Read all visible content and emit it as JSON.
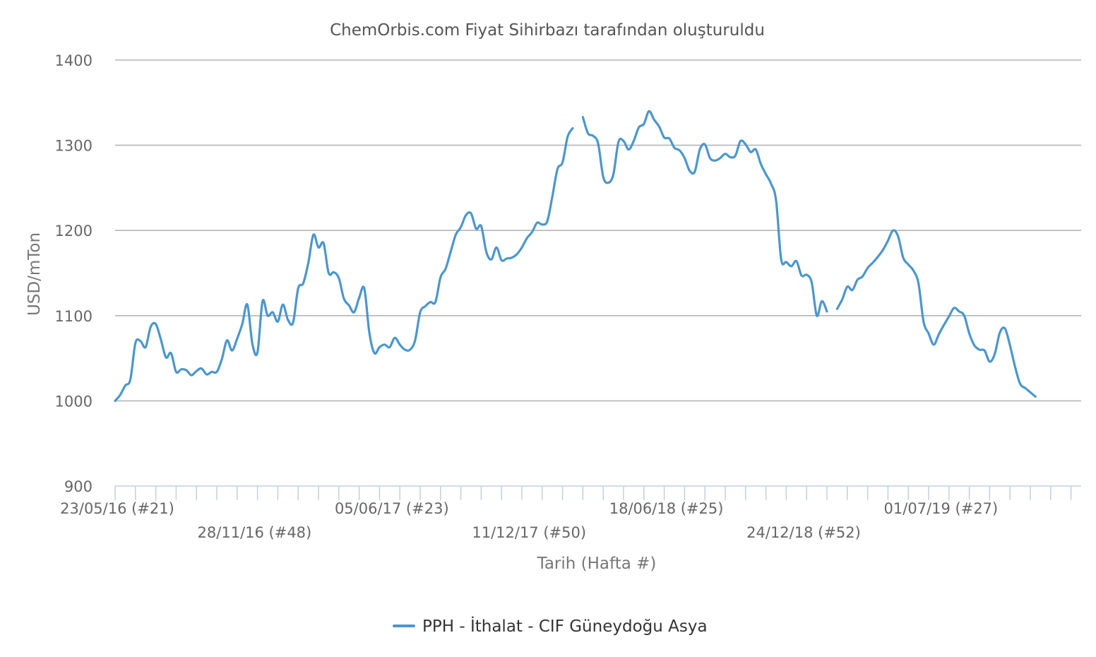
{
  "chart_data": {
    "type": "line",
    "title": "ChemOrbis.com Fiyat Sihirbazı tarafından oluşturuldu",
    "xlabel": "Tarih (Hafta #)",
    "ylabel": "USD/mTon",
    "ylim": [
      900,
      1400
    ],
    "yticks": [
      "900",
      "1000",
      "1100",
      "1200",
      "1300",
      "1400"
    ],
    "grid": true,
    "legend_position": "bottom",
    "color": "#4b96cc",
    "x_range": [
      "23/05/16",
      "13/01/20"
    ],
    "xtick_labels": [
      {
        "label": "23/05/16 (#21)",
        "row": 1
      },
      {
        "label": "28/11/16 (#48)",
        "row": 2
      },
      {
        "label": "05/06/17 (#23)",
        "row": 1
      },
      {
        "label": "11/12/17 (#50)",
        "row": 2
      },
      {
        "label": "18/06/18 (#25)",
        "row": 1
      },
      {
        "label": "24/12/18 (#52)",
        "row": 2
      },
      {
        "label": "01/07/19 (#27)",
        "row": 1
      }
    ],
    "series": [
      {
        "name": "PPH - İthalat - CIF Güneydoğu Asya",
        "points": [
          [
            "23/05/16",
            1000
          ],
          [
            "30/05/16",
            1007
          ],
          [
            "06/06/16",
            1018
          ],
          [
            "13/06/16",
            1025
          ],
          [
            "20/06/16",
            1068
          ],
          [
            "27/06/16",
            1070
          ],
          [
            "04/07/16",
            1063
          ],
          [
            "11/07/16",
            1087
          ],
          [
            "18/07/16",
            1090
          ],
          [
            "25/07/16",
            1072
          ],
          [
            "01/08/16",
            1051
          ],
          [
            "08/08/16",
            1056
          ],
          [
            "15/08/16",
            1034
          ],
          [
            "22/08/16",
            1037
          ],
          [
            "29/08/16",
            1036
          ],
          [
            "05/09/16",
            1030
          ],
          [
            "12/09/16",
            1035
          ],
          [
            "19/09/16",
            1038
          ],
          [
            "26/09/16",
            1031
          ],
          [
            "03/10/16",
            1034
          ],
          [
            "10/10/16",
            1034
          ],
          [
            "17/10/16",
            1049
          ],
          [
            "24/10/16",
            1071
          ],
          [
            "31/10/16",
            1059
          ],
          [
            "07/11/16",
            1073
          ],
          [
            "14/11/16",
            1090
          ],
          [
            "21/11/16",
            1113
          ],
          [
            "28/11/16",
            1067
          ],
          [
            "05/12/16",
            1057
          ],
          [
            "12/12/16",
            1117
          ],
          [
            "19/12/16",
            1100
          ],
          [
            "26/12/16",
            1104
          ],
          [
            "02/01/17",
            1093
          ],
          [
            "09/01/17",
            1113
          ],
          [
            "16/01/17",
            1095
          ],
          [
            "23/01/17",
            1092
          ],
          [
            "30/01/17",
            1132
          ],
          [
            "06/02/17",
            1138
          ],
          [
            "13/02/17",
            1162
          ],
          [
            "20/02/17",
            1195
          ],
          [
            "27/02/17",
            1180
          ],
          [
            "06/03/17",
            1185
          ],
          [
            "13/03/17",
            1150
          ],
          [
            "20/03/17",
            1151
          ],
          [
            "27/03/17",
            1144
          ],
          [
            "03/04/17",
            1120
          ],
          [
            "10/04/17",
            1112
          ],
          [
            "17/04/17",
            1104
          ],
          [
            "24/04/17",
            1121
          ],
          [
            "01/05/17",
            1132
          ],
          [
            "08/05/17",
            1080
          ],
          [
            "15/05/17",
            1056
          ],
          [
            "22/05/17",
            1063
          ],
          [
            "29/05/17",
            1066
          ],
          [
            "05/06/17",
            1063
          ],
          [
            "12/06/17",
            1074
          ],
          [
            "19/06/17",
            1066
          ],
          [
            "26/06/17",
            1060
          ],
          [
            "03/07/17",
            1060
          ],
          [
            "10/07/17",
            1071
          ],
          [
            "17/07/17",
            1104
          ],
          [
            "24/07/17",
            1111
          ],
          [
            "31/07/17",
            1116
          ],
          [
            "07/08/17",
            1116
          ],
          [
            "14/08/17",
            1145
          ],
          [
            "21/08/17",
            1155
          ],
          [
            "28/08/17",
            1175
          ],
          [
            "04/09/17",
            1195
          ],
          [
            "11/09/17",
            1204
          ],
          [
            "18/09/17",
            1218
          ],
          [
            "25/09/17",
            1220
          ],
          [
            "02/10/17",
            1202
          ],
          [
            "09/10/17",
            1205
          ],
          [
            "16/10/17",
            1175
          ],
          [
            "23/10/17",
            1166
          ],
          [
            "30/10/17",
            1180
          ],
          [
            "06/11/17",
            1165
          ],
          [
            "13/11/17",
            1167
          ],
          [
            "20/11/17",
            1168
          ],
          [
            "27/11/17",
            1172
          ],
          [
            "04/12/17",
            1180
          ],
          [
            "11/12/17",
            1191
          ],
          [
            "18/12/17",
            1198
          ],
          [
            "25/12/17",
            1209
          ],
          [
            "01/01/18",
            1207
          ],
          [
            "08/01/18",
            1211
          ],
          [
            "15/01/18",
            1240
          ],
          [
            "22/01/18",
            1272
          ],
          [
            "29/01/18",
            1280
          ],
          [
            "05/02/18",
            1310
          ],
          [
            "12/02/18",
            1320
          ],
          null,
          [
            "26/02/18",
            1333
          ],
          [
            "05/03/18",
            1314
          ],
          [
            "12/03/18",
            1311
          ],
          [
            "19/03/18",
            1302
          ],
          [
            "26/03/18",
            1263
          ],
          [
            "02/04/18",
            1256
          ],
          [
            "09/04/18",
            1266
          ],
          [
            "16/04/18",
            1304
          ],
          [
            "23/04/18",
            1305
          ],
          [
            "30/04/18",
            1295
          ],
          [
            "07/05/18",
            1305
          ],
          [
            "14/05/18",
            1321
          ],
          [
            "21/05/18",
            1325
          ],
          [
            "28/05/18",
            1340
          ],
          [
            "04/06/18",
            1330
          ],
          [
            "11/06/18",
            1322
          ],
          [
            "18/06/18",
            1309
          ],
          [
            "25/06/18",
            1308
          ],
          [
            "02/07/18",
            1297
          ],
          [
            "09/07/18",
            1294
          ],
          [
            "16/07/18",
            1285
          ],
          [
            "23/07/18",
            1270
          ],
          [
            "30/07/18",
            1269
          ],
          [
            "06/08/18",
            1295
          ],
          [
            "13/08/18",
            1301
          ],
          [
            "20/08/18",
            1285
          ],
          [
            "27/08/18",
            1282
          ],
          [
            "03/09/18",
            1285
          ],
          [
            "10/09/18",
            1290
          ],
          [
            "17/09/18",
            1286
          ],
          [
            "24/09/18",
            1288
          ],
          [
            "01/10/18",
            1305
          ],
          [
            "08/10/18",
            1301
          ],
          [
            "15/10/18",
            1292
          ],
          [
            "22/10/18",
            1295
          ],
          [
            "29/10/18",
            1278
          ],
          [
            "05/11/18",
            1266
          ],
          [
            "12/11/18",
            1255
          ],
          [
            "19/11/18",
            1235
          ],
          [
            "26/11/18",
            1166
          ],
          [
            "03/12/18",
            1163
          ],
          [
            "10/12/18",
            1158
          ],
          [
            "17/12/18",
            1164
          ],
          [
            "24/12/18",
            1147
          ],
          [
            "31/12/18",
            1148
          ],
          [
            "07/01/19",
            1139
          ],
          [
            "14/01/19",
            1100
          ],
          [
            "21/01/19",
            1117
          ],
          [
            "28/01/19",
            1105
          ],
          null,
          [
            "11/02/19",
            1108
          ],
          [
            "18/02/19",
            1119
          ],
          [
            "25/02/19",
            1134
          ],
          [
            "04/03/19",
            1130
          ],
          [
            "11/03/19",
            1142
          ],
          [
            "18/03/19",
            1146
          ],
          [
            "25/03/19",
            1156
          ],
          [
            "01/04/19",
            1162
          ],
          [
            "08/04/19",
            1169
          ],
          [
            "15/04/19",
            1177
          ],
          [
            "22/04/19",
            1188
          ],
          [
            "29/04/19",
            1200
          ],
          [
            "06/05/19",
            1193
          ],
          [
            "13/05/19",
            1168
          ],
          [
            "20/05/19",
            1160
          ],
          [
            "27/05/19",
            1153
          ],
          [
            "03/06/19",
            1138
          ],
          [
            "10/06/19",
            1093
          ],
          [
            "17/06/19",
            1079
          ],
          [
            "24/06/19",
            1066
          ],
          [
            "01/07/19",
            1078
          ],
          [
            "08/07/19",
            1089
          ],
          [
            "15/07/19",
            1099
          ],
          [
            "22/07/19",
            1109
          ],
          [
            "29/07/19",
            1105
          ],
          [
            "05/08/19",
            1100
          ],
          [
            "12/08/19",
            1079
          ],
          [
            "19/08/19",
            1065
          ],
          [
            "26/08/19",
            1060
          ],
          [
            "02/09/19",
            1059
          ],
          [
            "09/09/19",
            1046
          ],
          [
            "16/09/19",
            1055
          ],
          [
            "23/09/19",
            1080
          ],
          [
            "30/09/19",
            1085
          ],
          [
            "07/10/19",
            1065
          ],
          [
            "14/10/19",
            1040
          ],
          [
            "21/10/19",
            1020
          ],
          [
            "28/10/19",
            1015
          ],
          [
            "04/11/19",
            1010
          ],
          [
            "11/11/19",
            1005
          ]
        ]
      }
    ]
  }
}
